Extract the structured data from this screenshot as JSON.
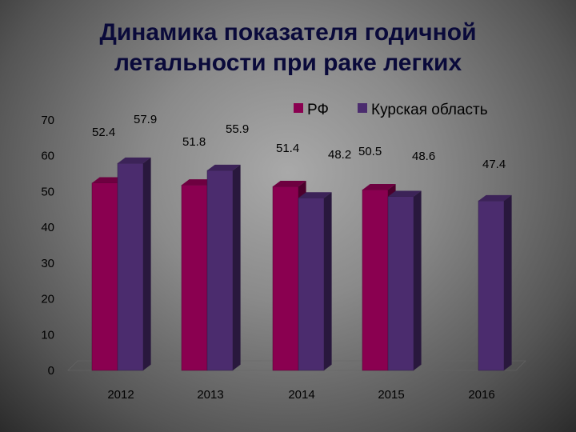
{
  "title_line1": "Динамика показателя годичной",
  "title_line2": "летальности при раке легких",
  "chart_data": {
    "type": "bar",
    "title": "Динамика показателя годичной летальности при раке легких",
    "categories": [
      "2012",
      "2013",
      "2014",
      "2015",
      "2016"
    ],
    "series": [
      {
        "name": "РФ",
        "color": "#8a0050",
        "values": [
          52.4,
          51.8,
          51.4,
          50.5,
          null
        ]
      },
      {
        "name": "Курская область",
        "color": "#4b2c6e",
        "values": [
          57.9,
          55.9,
          48.2,
          48.6,
          47.4
        ]
      }
    ],
    "ylim": [
      0,
      70
    ],
    "yticks": [
      "0",
      "10",
      "20",
      "30",
      "40",
      "50",
      "60",
      "70"
    ],
    "data_labels": [
      "52.4",
      "57.9",
      "51.8",
      "55.9",
      "51.4",
      "48.2",
      "50.5",
      "48.6",
      "47.4"
    ],
    "legend_position": "top-right",
    "grid": false
  }
}
